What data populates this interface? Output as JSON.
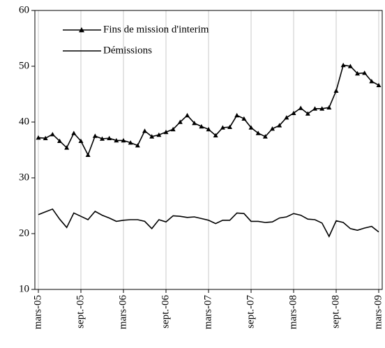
{
  "chart_data": {
    "type": "line",
    "categories": [
      "mars-05",
      null,
      null,
      null,
      null,
      null,
      "sept.-05",
      null,
      null,
      null,
      null,
      null,
      "mars-06",
      null,
      null,
      null,
      null,
      null,
      "sept.-06",
      null,
      null,
      null,
      null,
      null,
      "mars-07",
      null,
      null,
      null,
      null,
      null,
      "sept.-07",
      null,
      null,
      null,
      null,
      null,
      "mars-08",
      null,
      null,
      null,
      null,
      null,
      "sept.-08",
      null,
      null,
      null,
      null,
      null,
      "mars-09"
    ],
    "series": [
      {
        "name": "Fins de mission d'interim",
        "color": "#000000",
        "marker": "triangle",
        "values": [
          37.2,
          37.1,
          37.8,
          36.6,
          35.4,
          38.0,
          36.6,
          34.1,
          37.5,
          37.0,
          37.1,
          36.7,
          36.7,
          36.3,
          35.8,
          38.4,
          37.4,
          37.7,
          38.2,
          38.7,
          40.0,
          41.2,
          39.8,
          39.2,
          38.7,
          37.6,
          39.0,
          39.1,
          41.2,
          40.6,
          39.0,
          38.0,
          37.4,
          38.8,
          39.4,
          40.8,
          41.6,
          42.5,
          41.5,
          42.4,
          42.4,
          42.6,
          45.6,
          50.2,
          50.0,
          48.7,
          48.8,
          47.3,
          46.6
        ]
      },
      {
        "name": "Démissions",
        "color": "#000000",
        "marker": "none",
        "values": [
          23.4,
          23.9,
          24.4,
          22.6,
          21.1,
          23.7,
          23.1,
          22.5,
          24.0,
          23.3,
          22.8,
          22.2,
          22.4,
          22.5,
          22.5,
          22.2,
          20.9,
          22.5,
          22.1,
          23.2,
          23.1,
          22.9,
          23.0,
          22.7,
          22.4,
          21.8,
          22.4,
          22.4,
          23.7,
          23.6,
          22.2,
          22.2,
          22.0,
          22.1,
          22.8,
          23.0,
          23.6,
          23.3,
          22.6,
          22.5,
          21.9,
          19.5,
          22.3,
          22.0,
          20.9,
          20.6,
          21.0,
          21.3,
          20.3
        ]
      }
    ],
    "ylim": [
      10,
      60
    ],
    "yticks": [
      10,
      20,
      30,
      40,
      50,
      60
    ],
    "xgrid": true,
    "legend": "upper-left"
  }
}
